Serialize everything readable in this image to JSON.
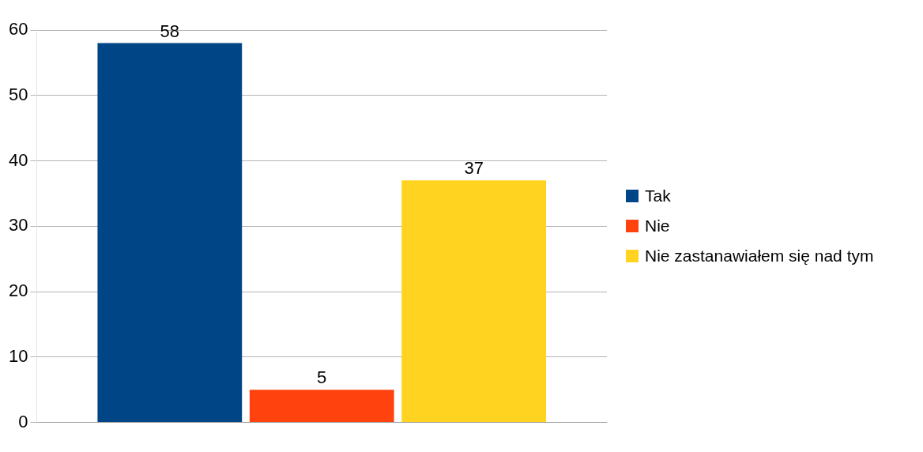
{
  "chart_data": {
    "type": "bar",
    "categories": [
      null
    ],
    "series": [
      {
        "name": "Tak",
        "color": "#004586",
        "values": [
          58
        ]
      },
      {
        "name": "Nie",
        "color": "#ff420e",
        "values": [
          5
        ]
      },
      {
        "name": "Nie zastanawiałem się nad tym",
        "color": "#ffd320",
        "values": [
          37
        ]
      }
    ],
    "ylim": [
      0,
      60
    ],
    "yticks": [
      0,
      10,
      20,
      30,
      40,
      50,
      60
    ],
    "grid": "y",
    "legend": "right",
    "data_labels": true
  }
}
